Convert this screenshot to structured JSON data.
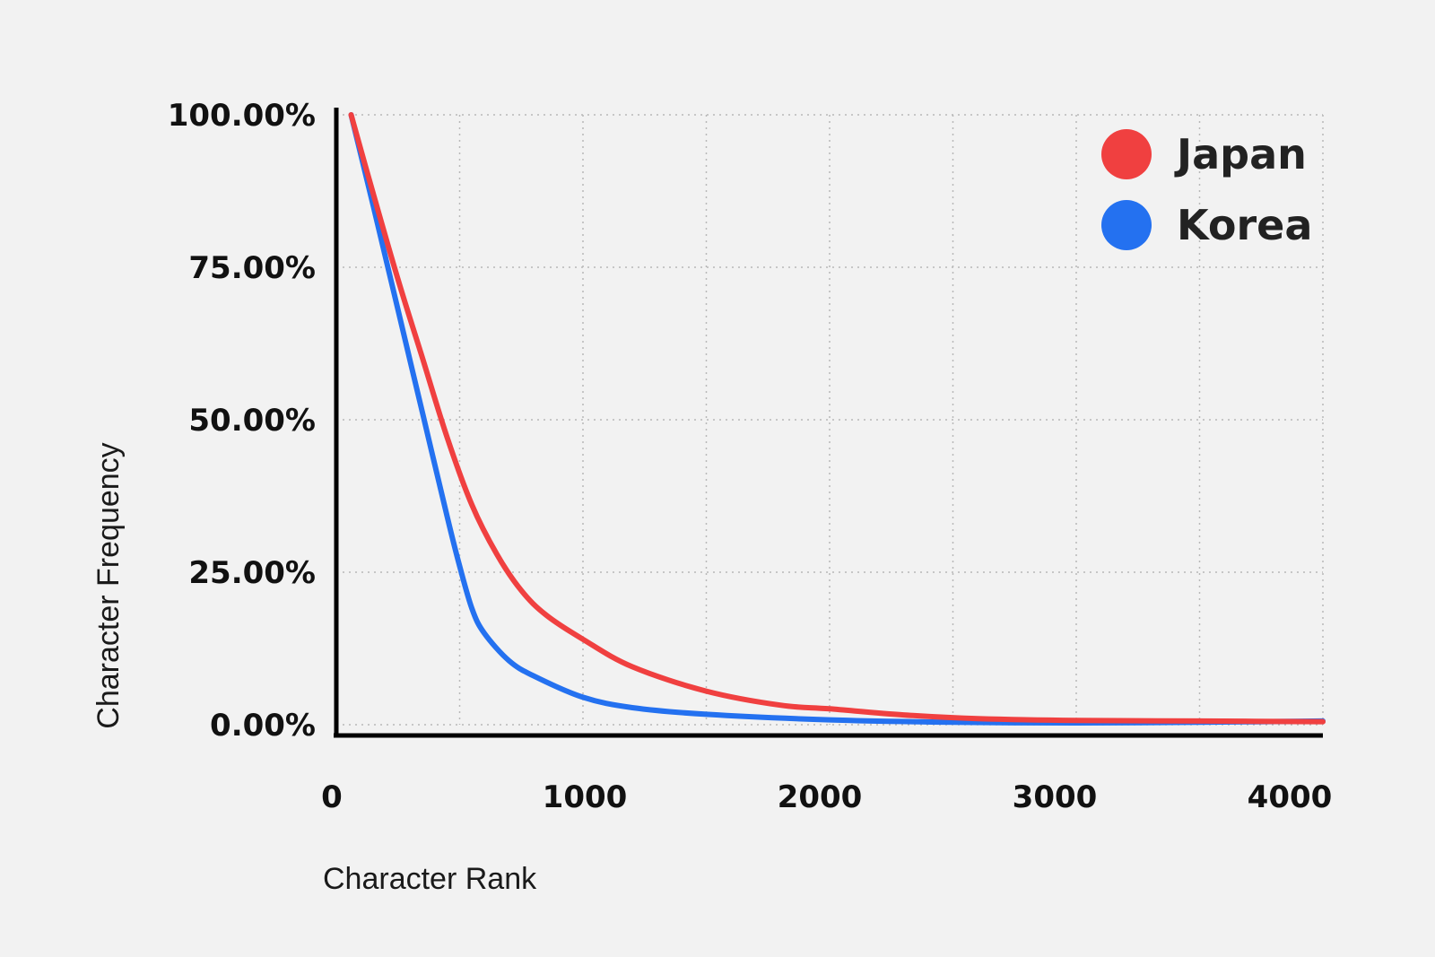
{
  "chart_data": {
    "type": "line",
    "xlabel": "Character Rank",
    "ylabel": "Character Frequency",
    "xlim": [
      0,
      4000
    ],
    "ylim": [
      0,
      100
    ],
    "x_ticks": [
      0,
      1000,
      2000,
      3000,
      4000
    ],
    "x_tick_labels": [
      "0",
      "1000",
      "2000",
      "3000",
      "4000"
    ],
    "y_ticks": [
      0,
      25,
      50,
      75,
      100
    ],
    "y_tick_labels": [
      "0.00%",
      "25.00%",
      "50.00%",
      "75.00%",
      "100.00%"
    ],
    "grid": true,
    "legend_position": "top-right",
    "series": [
      {
        "name": "Japan",
        "color": "#f04040",
        "x": [
          60,
          150,
          250,
          350,
          450,
          550,
          650,
          750,
          850,
          1000,
          1200,
          1500,
          1800,
          2000,
          2300,
          2600,
          3000,
          3500,
          4000
        ],
        "y": [
          100,
          87,
          73,
          60,
          47,
          36,
          28,
          22,
          18,
          14,
          9.5,
          5.5,
          3.2,
          2.6,
          1.6,
          1.0,
          0.7,
          0.6,
          0.5
        ]
      },
      {
        "name": "Korea",
        "color": "#2471f0",
        "x": [
          60,
          150,
          250,
          350,
          450,
          500,
          550,
          600,
          700,
          800,
          1000,
          1200,
          1500,
          2000,
          2500,
          3000,
          3500,
          4000
        ],
        "y": [
          100,
          85,
          68,
          51,
          34,
          26,
          19,
          15,
          10.5,
          8,
          4.5,
          2.8,
          1.7,
          0.8,
          0.4,
          0.3,
          0.4,
          0.6
        ]
      }
    ]
  }
}
